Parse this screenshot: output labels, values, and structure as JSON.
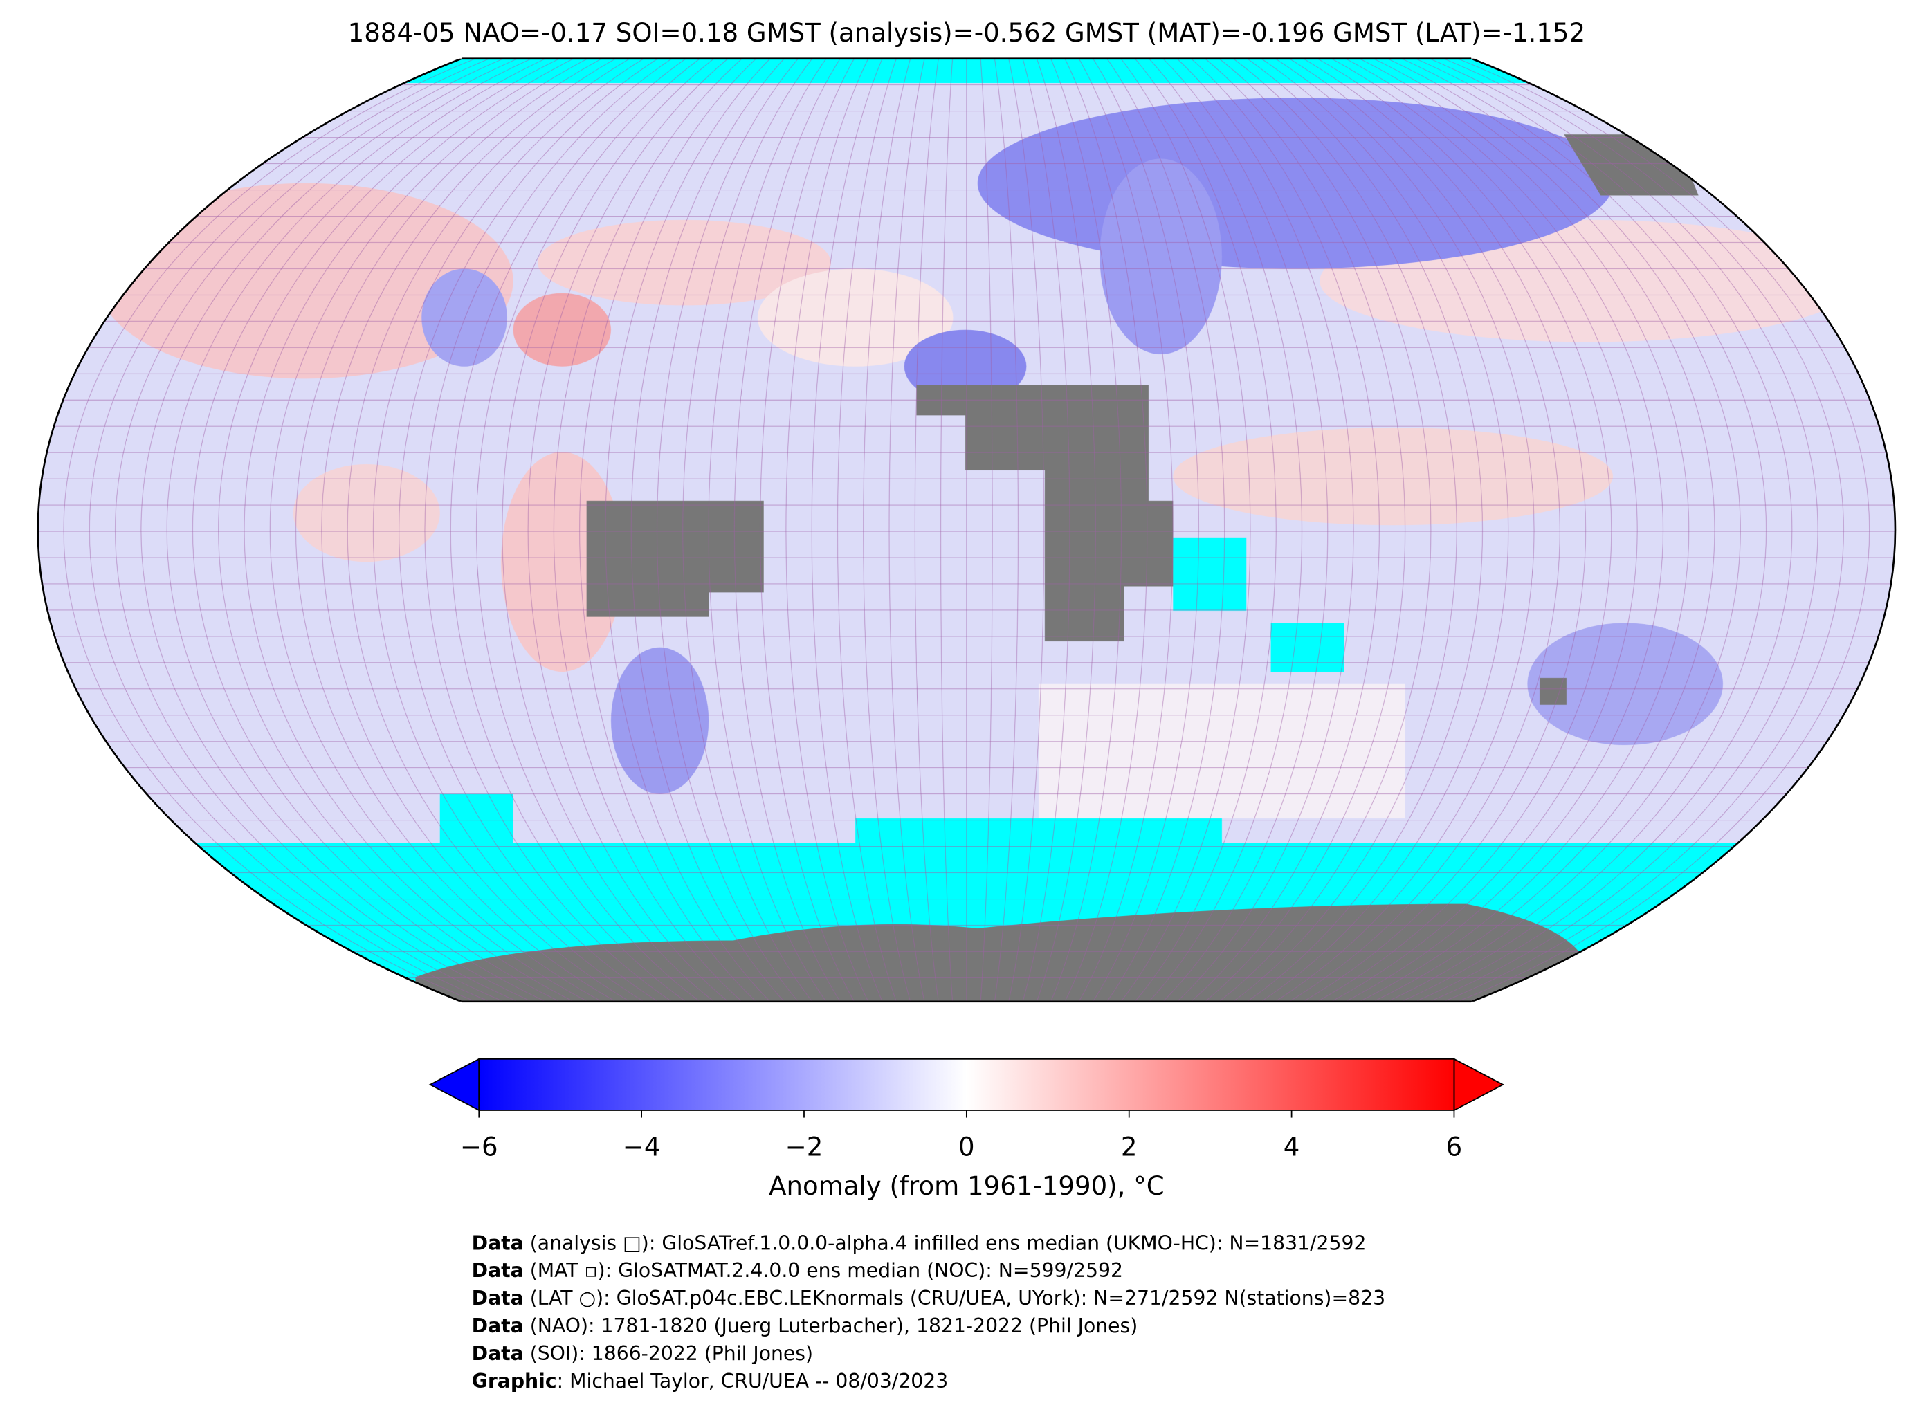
{
  "header": {
    "title": "1884-05 NAO=-0.17 SOI=0.18 GMST (analysis)=-0.562 GMST (MAT)=-0.196 GMST (LAT)=-1.152"
  },
  "colorbar": {
    "lim": [
      -6,
      6
    ],
    "ticks": [
      {
        "value": -6,
        "label": "−6"
      },
      {
        "value": -4,
        "label": "−4"
      },
      {
        "value": -2,
        "label": "−2"
      },
      0,
      2,
      4,
      6
    ],
    "colors": [
      "#0000ff",
      "#ffffff",
      "#ff0000"
    ],
    "label": "Anomaly (from 1961-1990), °C"
  },
  "footer": {
    "lines": [
      {
        "bold": "Data",
        "text": " (analysis □): GloSATref.1.0.0.0-alpha.4 infilled ens median (UKMO-HC): N=1831/2592"
      },
      {
        "bold": "Data",
        "text": " (MAT ▫): GloSATMAT.2.4.0.0 ens median (NOC): N=599/2592"
      },
      {
        "bold": "Data",
        "text": " (LAT ○): GloSAT.p04c.EBC.LEKnormals (CRU/UEA, UYork): N=271/2592 N(stations)=823"
      },
      {
        "bold": "Data",
        "text": " (NAO): 1781-1820 (Juerg Luterbacher), 1821-2022 (Phil Jones)"
      },
      {
        "bold": "Data",
        "text": " (SOI): 1866-2022 (Phil Jones)"
      },
      {
        "bold": "Graphic",
        "text": ": Michael Taylor, CRU/UEA -- 08/03/2023"
      }
    ]
  }
}
